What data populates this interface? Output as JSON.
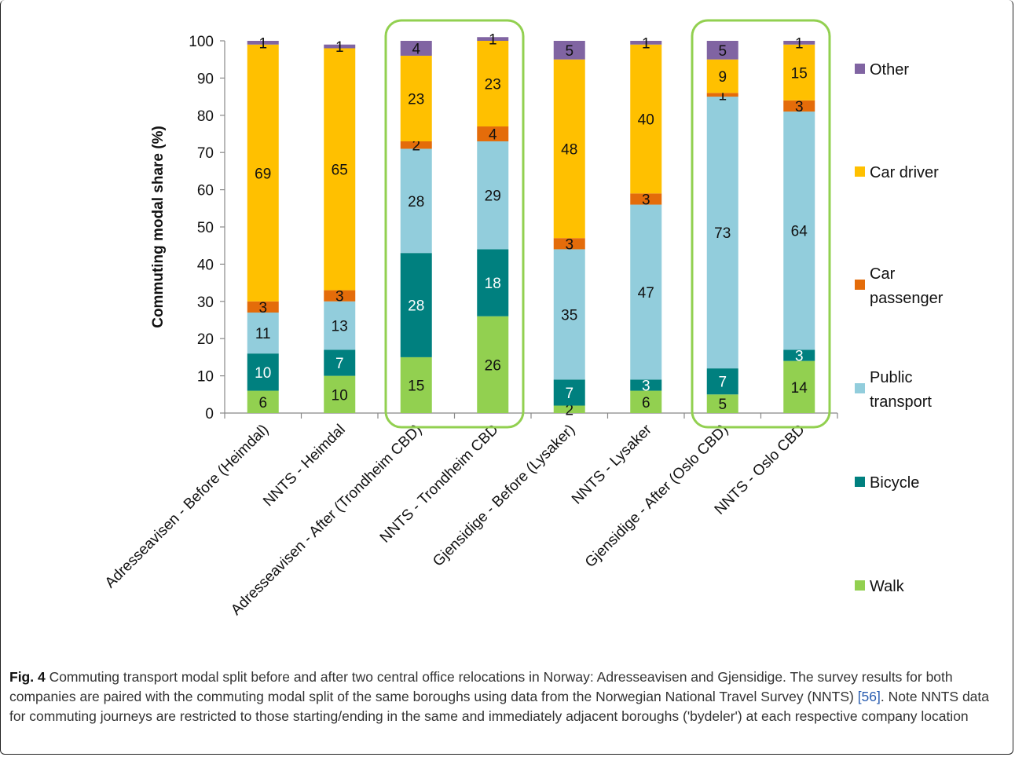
{
  "chart_data": {
    "type": "bar",
    "stacked": true,
    "ylabel": "Commuting modal share (%)",
    "xlabel": "",
    "ylim": [
      0,
      100
    ],
    "yticks": [
      0,
      10,
      20,
      30,
      40,
      50,
      60,
      70,
      80,
      90,
      100
    ],
    "grid": false,
    "legend_position": "right",
    "categories": [
      "Adresseavisen - Before (Heimdal)",
      "NNTS - Heimdal",
      "Adresseavisen - After (Trondheim CBD)",
      "NNTS - Trondheim CBD",
      "Gjensidige - Before (Lysaker)",
      "NNTS - Lysaker",
      "Gjensidige - After (Oslo CBD)",
      "NNTS - Oslo CBD"
    ],
    "series": [
      {
        "name": "Walk",
        "color": "#92d050",
        "values": [
          6,
          10,
          15,
          26,
          2,
          6,
          5,
          14
        ]
      },
      {
        "name": "Bicycle",
        "color": "#00807f",
        "values": [
          10,
          7,
          28,
          18,
          7,
          3,
          7,
          3
        ]
      },
      {
        "name": "Public transport",
        "color": "#92cddc",
        "values": [
          11,
          13,
          28,
          29,
          35,
          47,
          73,
          64
        ]
      },
      {
        "name": "Car passenger",
        "color": "#e46c0a",
        "values": [
          3,
          3,
          2,
          4,
          3,
          3,
          1,
          3
        ]
      },
      {
        "name": "Car driver",
        "color": "#ffc000",
        "values": [
          69,
          65,
          23,
          23,
          48,
          40,
          9,
          15
        ]
      },
      {
        "name": "Other",
        "color": "#8064a2",
        "values": [
          1,
          1,
          4,
          1,
          5,
          1,
          5,
          1
        ]
      }
    ],
    "legend_entries": [
      "Other",
      "Car driver",
      "Car passenger",
      "Public transport",
      "Bicycle",
      "Walk"
    ],
    "highlight_groups": [
      [
        2,
        3
      ],
      [
        6,
        7
      ]
    ],
    "highlight_color": "#92d050"
  },
  "caption": {
    "label": "Fig. 4",
    "text_1": " Commuting transport modal split before and after two central office relocations in Norway: Adresseavisen and Gjensidige. The survey results for both companies are paired with the commuting modal split of the same boroughs using data from the Norwegian National Travel Survey (NNTS) ",
    "ref": "[56]",
    "text_2": ". Note NNTS data for commuting journeys are restricted to those starting/ending in the same and immediately adjacent boroughs ('bydeler') at each respective company location"
  }
}
